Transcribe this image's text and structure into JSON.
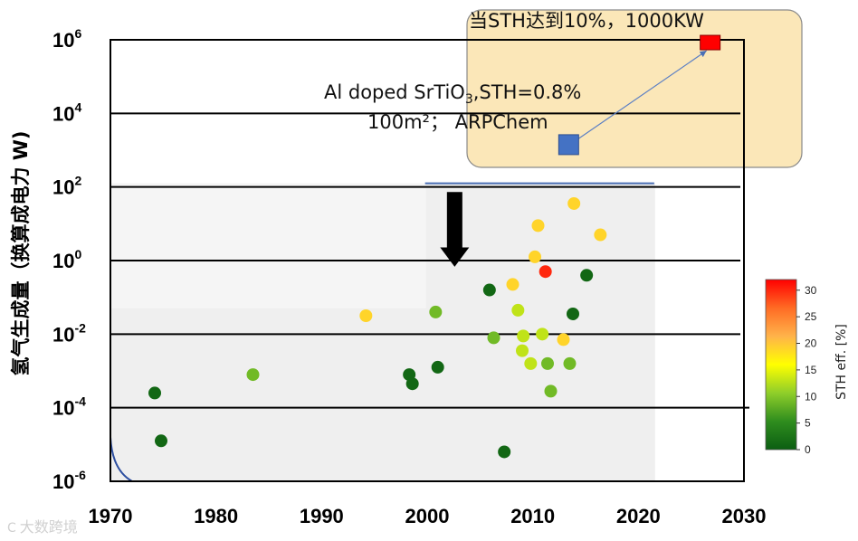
{
  "chart_data": {
    "type": "scatter",
    "title": "",
    "xlabel": "",
    "ylabel": "氢气生成量（换算成电力 W)",
    "xlim": [
      1970,
      2030
    ],
    "ylim_log10": [
      -6,
      6
    ],
    "x_ticks": [
      "1970",
      "1980",
      "1990",
      "2000",
      "2010",
      "2020",
      "2030"
    ],
    "y_ticks": [
      {
        "exp": -6,
        "base": "10",
        "sup": "-6"
      },
      {
        "exp": -4,
        "base": "10",
        "sup": "-4"
      },
      {
        "exp": -2,
        "base": "10",
        "sup": "-2"
      },
      {
        "exp": 0,
        "base": "10",
        "sup": "0"
      },
      {
        "exp": 2,
        "base": "10",
        "sup": "2"
      },
      {
        "exp": 4,
        "base": "10",
        "sup": "4"
      },
      {
        "exp": 6,
        "base": "10",
        "sup": "6"
      }
    ],
    "colorbar": {
      "title": "STH eff. [%]",
      "min": 0,
      "max": 32,
      "ticks": [
        "0",
        "5",
        "10",
        "15",
        "20",
        "25",
        "30"
      ],
      "colors": [
        "#0b5e12",
        "#2f8d1e",
        "#8fce2a",
        "#ffff00",
        "#ffb34a",
        "#ff6b24",
        "#ff0000"
      ]
    },
    "points": [
      {
        "x": 1974.2,
        "y": -3.6,
        "sth": 1
      },
      {
        "x": 1974.8,
        "y": -4.9,
        "sth": 1
      },
      {
        "x": 1983.5,
        "y": -3.1,
        "sth": 9
      },
      {
        "x": 1994.2,
        "y": -1.5,
        "sth": 19
      },
      {
        "x": 1998.3,
        "y": -3.1,
        "sth": 1
      },
      {
        "x": 1998.6,
        "y": -3.35,
        "sth": 1
      },
      {
        "x": 2000.8,
        "y": -1.4,
        "sth": 9
      },
      {
        "x": 2001.0,
        "y": -2.9,
        "sth": 1
      },
      {
        "x": 2005.9,
        "y": -0.8,
        "sth": 1
      },
      {
        "x": 2006.3,
        "y": -2.1,
        "sth": 9
      },
      {
        "x": 2007.3,
        "y": -5.2,
        "sth": 1
      },
      {
        "x": 2008.1,
        "y": -0.65,
        "sth": 19
      },
      {
        "x": 2008.6,
        "y": -1.35,
        "sth": 13
      },
      {
        "x": 2009.1,
        "y": -2.05,
        "sth": 13
      },
      {
        "x": 2009.0,
        "y": -2.45,
        "sth": 13
      },
      {
        "x": 2009.8,
        "y": -2.8,
        "sth": 13
      },
      {
        "x": 2010.2,
        "y": 0.1,
        "sth": 19
      },
      {
        "x": 2010.5,
        "y": 0.95,
        "sth": 19
      },
      {
        "x": 2010.9,
        "y": -2.0,
        "sth": 13
      },
      {
        "x": 2011.2,
        "y": -0.3,
        "sth": 30
      },
      {
        "x": 2011.4,
        "y": -2.8,
        "sth": 9
      },
      {
        "x": 2011.7,
        "y": -3.55,
        "sth": 9
      },
      {
        "x": 2012.9,
        "y": -2.15,
        "sth": 19
      },
      {
        "x": 2013.5,
        "y": -2.8,
        "sth": 9
      },
      {
        "x": 2013.8,
        "y": -1.45,
        "sth": 1
      },
      {
        "x": 2013.9,
        "y": 1.55,
        "sth": 19
      },
      {
        "x": 2015.1,
        "y": -0.4,
        "sth": 1
      },
      {
        "x": 2016.4,
        "y": 0.7,
        "sth": 19
      }
    ],
    "annotations": {
      "target": {
        "x": 2026.8,
        "y": 5.95,
        "color": "#ff0000"
      },
      "current": {
        "x": 2013.4,
        "y": 3.15,
        "color": "#4472c4"
      },
      "arrow_from_year": 2002.6,
      "arrow_from_log": 1.85,
      "arrow_to_log": 0.0
    },
    "series_colors": {
      "grid_line": "#000000",
      "shade": "#efefef",
      "box_fill": "#fbe7b8",
      "box_border": "#8a8a8a"
    }
  },
  "annotations": {
    "box_title": "当STH达到10%，1000KW",
    "label_line1_a": "Al doped SrTiO",
    "label_line1_sub": "3",
    "label_line1_b": ",STH=0.8%",
    "label_line2": "100m²；  ARPChem"
  },
  "watermark": {
    "logo": "C",
    "text": "大数跨境"
  }
}
